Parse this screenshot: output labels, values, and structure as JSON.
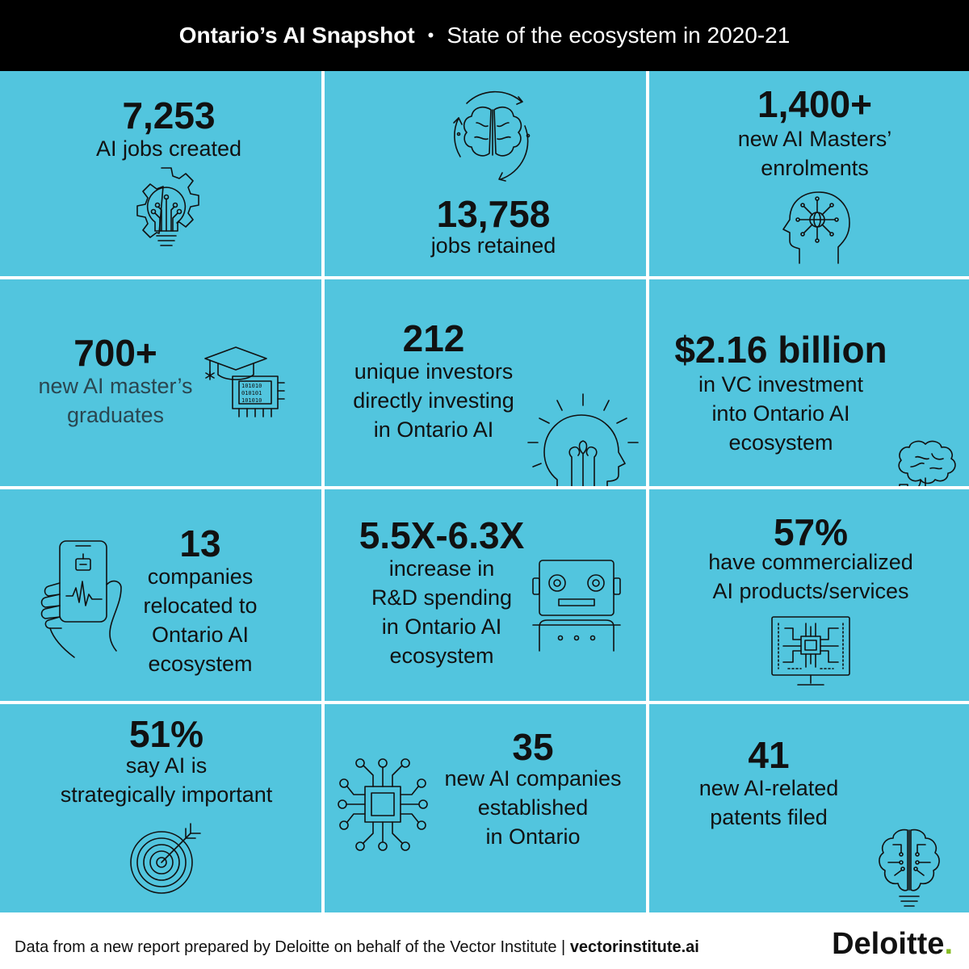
{
  "header": {
    "title": "Ontario’s AI Snapshot",
    "separator": "•",
    "subtitle": "State of the ecosystem in 2020-21"
  },
  "tiles": [
    {
      "stat": "7,253",
      "lines": [
        "AI jobs created"
      ],
      "icon": "gear-lightbulb-icon"
    },
    {
      "stat": "13,758",
      "lines": [
        "jobs retained"
      ],
      "icon": "brain-cycle-icon"
    },
    {
      "stat": "1,400+",
      "lines": [
        "new AI Masters’",
        "enrolments"
      ],
      "icon": "head-globe-icon"
    },
    {
      "stat": "700+",
      "lines": [
        "new AI master’s",
        "graduates"
      ],
      "icon": "graduation-chip-icon"
    },
    {
      "stat": "212",
      "lines": [
        "unique investors",
        "directly investing",
        "in Ontario AI"
      ],
      "icon": "head-lightbulb-icon"
    },
    {
      "stat": "$2.16 billion",
      "lines": [
        "in VC investment",
        "into Ontario AI",
        "ecosystem"
      ],
      "icon": "brain-plug-icon"
    },
    {
      "stat": "13",
      "lines": [
        "companies",
        "relocated to",
        "Ontario AI",
        "ecosystem"
      ],
      "icon": "hand-phone-icon"
    },
    {
      "stat": "5.5X-6.3X",
      "lines": [
        "increase in",
        "R&D spending",
        "in Ontario AI",
        "ecosystem"
      ],
      "icon": "robot-icon"
    },
    {
      "stat": "57%",
      "lines": [
        "have commercialized",
        "AI products/services"
      ],
      "icon": "circuit-monitor-icon"
    },
    {
      "stat": "51%",
      "lines": [
        "say AI is",
        "strategically important"
      ],
      "icon": "target-icon"
    },
    {
      "stat": "35",
      "lines": [
        "new AI companies",
        "established",
        "in Ontario"
      ],
      "icon": "microchip-icon"
    },
    {
      "stat": "41",
      "lines": [
        "new AI-related",
        "patents filed"
      ],
      "icon": "brain-bulb-icon"
    }
  ],
  "chip_bits": [
    "101010",
    "010101",
    "101010"
  ],
  "footer": {
    "note": "Data from a new report prepared by Deloitte on behalf of the Vector Institute | ",
    "link": "vectorinstitute.ai",
    "brand": "Deloitte",
    "brand_dot": "."
  },
  "colors": {
    "tile": "#52c5de",
    "header": "#000000",
    "accent_dot": "#86bc25"
  }
}
